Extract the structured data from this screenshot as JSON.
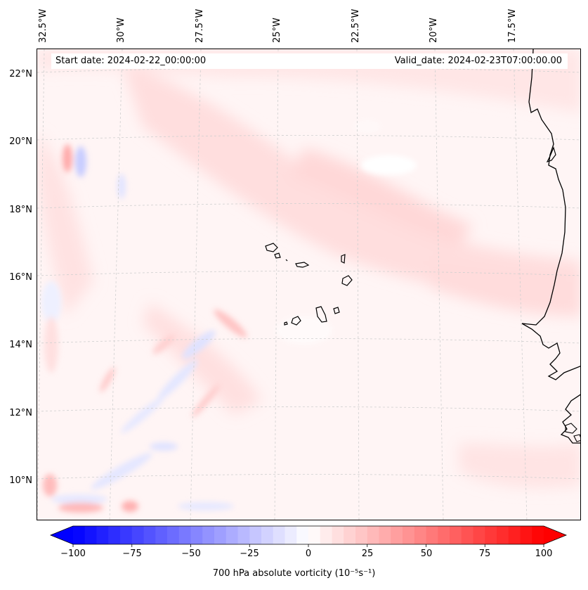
{
  "map": {
    "start_date": "Start date: 2024-02-22_00:00:00",
    "valid_date": "Valid_date: 2024-02-23T07:00:00.00",
    "lon_labels": [
      "32.5°W",
      "30°W",
      "27.5°W",
      "25°W",
      "22.5°W",
      "20°W",
      "17.5°W"
    ],
    "lat_labels": [
      "22°N",
      "20°N",
      "18°N",
      "16°N",
      "14°N",
      "12°N",
      "10°N"
    ],
    "lat_values": [
      22,
      20,
      18,
      16,
      14,
      12,
      10
    ],
    "lat_range": [
      8.85,
      22.8
    ]
  },
  "colorbar": {
    "tick_labels": [
      "−100",
      "−75",
      "−50",
      "−25",
      "0",
      "25",
      "50",
      "75",
      "100"
    ],
    "tick_values": [
      -100,
      -75,
      -50,
      -25,
      0,
      25,
      50,
      75,
      100
    ],
    "range": [
      -100,
      100
    ],
    "label": "700 hPa absolute vorticity (10⁻⁵s⁻¹)",
    "colormap": "bwr",
    "low_color": "#0000ff",
    "mid_color": "#ffffff",
    "high_color": "#ff0000"
  }
}
